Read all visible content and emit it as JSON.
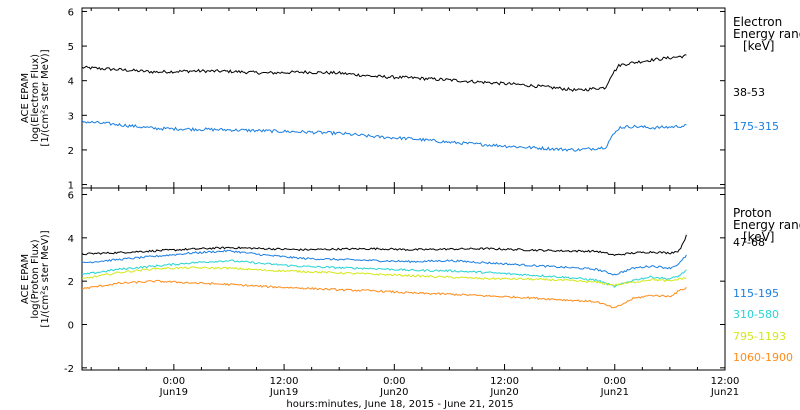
{
  "chart_data": {
    "type": "line",
    "x_axis": {
      "label": "hours:minutes, June 18, 2015 - June 21, 2015",
      "unit": "hours since 2015-06-18 00:00",
      "range": [
        14,
        84
      ],
      "ticks": [
        {
          "value": 24,
          "time": "0:00",
          "date": "Jun19"
        },
        {
          "value": 36,
          "time": "12:00",
          "date": "Jun19"
        },
        {
          "value": 48,
          "time": "0:00",
          "date": "Jun20"
        },
        {
          "value": 60,
          "time": "12:00",
          "date": "Jun20"
        },
        {
          "value": 72,
          "time": "0:00",
          "date": "Jun21"
        },
        {
          "value": 84,
          "time": "12:00",
          "date": "Jun21"
        }
      ]
    },
    "panels": [
      {
        "id": "electron",
        "ylabel_lines": [
          "ACE EPAM",
          "log(Electron Flux)",
          "[1/(cm²s ster MeV)]"
        ],
        "ylim": [
          0.9,
          6.1
        ],
        "yticks": [
          1,
          2,
          3,
          4,
          5,
          6
        ],
        "legend_title": [
          "Electron",
          "Energy range",
          "[keV]"
        ],
        "series": [
          {
            "name": "38-53",
            "color": "#000000",
            "points": [
              [
                14,
                4.38
              ],
              [
                18,
                4.32
              ],
              [
                22,
                4.25
              ],
              [
                26,
                4.28
              ],
              [
                30,
                4.27
              ],
              [
                34,
                4.22
              ],
              [
                38,
                4.25
              ],
              [
                42,
                4.22
              ],
              [
                46,
                4.12
              ],
              [
                50,
                4.08
              ],
              [
                54,
                4.02
              ],
              [
                58,
                3.95
              ],
              [
                62,
                3.88
              ],
              [
                66,
                3.78
              ],
              [
                68,
                3.72
              ],
              [
                70,
                3.78
              ],
              [
                71,
                3.8
              ],
              [
                71.6,
                4.15
              ],
              [
                72.5,
                4.45
              ],
              [
                74,
                4.52
              ],
              [
                76,
                4.6
              ],
              [
                78,
                4.66
              ],
              [
                79.8,
                4.72
              ]
            ]
          },
          {
            "name": "175-315",
            "color": "#1a7ee0",
            "points": [
              [
                14,
                2.82
              ],
              [
                18,
                2.73
              ],
              [
                22,
                2.62
              ],
              [
                26,
                2.6
              ],
              [
                30,
                2.58
              ],
              [
                34,
                2.55
              ],
              [
                38,
                2.52
              ],
              [
                42,
                2.48
              ],
              [
                46,
                2.38
              ],
              [
                50,
                2.32
              ],
              [
                54,
                2.22
              ],
              [
                58,
                2.15
              ],
              [
                62,
                2.08
              ],
              [
                66,
                2.02
              ],
              [
                68,
                2.0
              ],
              [
                70,
                2.05
              ],
              [
                71,
                2.08
              ],
              [
                71.6,
                2.35
              ],
              [
                72.5,
                2.65
              ],
              [
                74,
                2.68
              ],
              [
                76,
                2.64
              ],
              [
                78,
                2.66
              ],
              [
                79.8,
                2.7
              ]
            ]
          }
        ]
      },
      {
        "id": "proton",
        "ylabel_lines": [
          "ACE EPAM",
          "log(Proton Flux)",
          "[1/(cm²s ster MeV)]"
        ],
        "ylim": [
          -2.1,
          6.3
        ],
        "yticks": [
          -2,
          0,
          2,
          4,
          6
        ],
        "legend_title": [
          "Proton",
          "Energy range",
          "[keV]"
        ],
        "series": [
          {
            "name": "47-68",
            "color": "#000000",
            "points": [
              [
                14,
                3.25
              ],
              [
                18,
                3.32
              ],
              [
                22,
                3.4
              ],
              [
                26,
                3.48
              ],
              [
                30,
                3.55
              ],
              [
                34,
                3.5
              ],
              [
                38,
                3.45
              ],
              [
                42,
                3.48
              ],
              [
                46,
                3.5
              ],
              [
                50,
                3.45
              ],
              [
                54,
                3.48
              ],
              [
                58,
                3.5
              ],
              [
                62,
                3.45
              ],
              [
                66,
                3.4
              ],
              [
                70,
                3.38
              ],
              [
                72,
                3.2
              ],
              [
                74,
                3.3
              ],
              [
                76,
                3.35
              ],
              [
                78,
                3.3
              ],
              [
                79,
                3.4
              ],
              [
                79.8,
                4.1
              ]
            ]
          },
          {
            "name": "115-195",
            "color": "#1a7ee0",
            "points": [
              [
                14,
                2.85
              ],
              [
                18,
                3.0
              ],
              [
                22,
                3.15
              ],
              [
                26,
                3.3
              ],
              [
                30,
                3.4
              ],
              [
                34,
                3.2
              ],
              [
                38,
                3.05
              ],
              [
                42,
                3.0
              ],
              [
                46,
                2.95
              ],
              [
                50,
                2.9
              ],
              [
                54,
                2.95
              ],
              [
                58,
                2.85
              ],
              [
                62,
                2.75
              ],
              [
                66,
                2.65
              ],
              [
                70,
                2.55
              ],
              [
                72,
                2.3
              ],
              [
                74,
                2.6
              ],
              [
                76,
                2.7
              ],
              [
                78,
                2.6
              ],
              [
                79,
                2.8
              ],
              [
                79.8,
                3.2
              ]
            ]
          },
          {
            "name": "310-580",
            "color": "#26d3d3",
            "points": [
              [
                14,
                2.3
              ],
              [
                18,
                2.55
              ],
              [
                22,
                2.7
              ],
              [
                26,
                2.85
              ],
              [
                30,
                2.95
              ],
              [
                34,
                2.8
              ],
              [
                38,
                2.68
              ],
              [
                42,
                2.62
              ],
              [
                46,
                2.58
              ],
              [
                50,
                2.5
              ],
              [
                54,
                2.48
              ],
              [
                58,
                2.4
              ],
              [
                62,
                2.3
              ],
              [
                66,
                2.2
              ],
              [
                70,
                2.05
              ],
              [
                72,
                1.75
              ],
              [
                74,
                2.05
              ],
              [
                76,
                2.2
              ],
              [
                78,
                2.1
              ],
              [
                79,
                2.25
              ],
              [
                79.8,
                2.5
              ]
            ]
          },
          {
            "name": "795-1193",
            "color": "#d4e81a",
            "points": [
              [
                14,
                2.1
              ],
              [
                18,
                2.4
              ],
              [
                22,
                2.58
              ],
              [
                26,
                2.62
              ],
              [
                30,
                2.6
              ],
              [
                34,
                2.5
              ],
              [
                38,
                2.45
              ],
              [
                42,
                2.38
              ],
              [
                46,
                2.32
              ],
              [
                50,
                2.25
              ],
              [
                54,
                2.18
              ],
              [
                58,
                2.12
              ],
              [
                62,
                2.1
              ],
              [
                66,
                2.05
              ],
              [
                70,
                1.95
              ],
              [
                72,
                1.82
              ],
              [
                74,
                1.95
              ],
              [
                76,
                2.08
              ],
              [
                78,
                2.0
              ],
              [
                79,
                2.1
              ],
              [
                79.8,
                2.15
              ]
            ]
          },
          {
            "name": "1060-1900",
            "color": "#ff8c1a",
            "points": [
              [
                14,
                1.65
              ],
              [
                18,
                1.9
              ],
              [
                22,
                2.0
              ],
              [
                26,
                1.92
              ],
              [
                30,
                1.85
              ],
              [
                34,
                1.75
              ],
              [
                38,
                1.68
              ],
              [
                42,
                1.6
              ],
              [
                46,
                1.55
              ],
              [
                50,
                1.45
              ],
              [
                54,
                1.4
              ],
              [
                58,
                1.32
              ],
              [
                62,
                1.25
              ],
              [
                66,
                1.15
              ],
              [
                70,
                1.05
              ],
              [
                72,
                0.75
              ],
              [
                74,
                1.2
              ],
              [
                76,
                1.35
              ],
              [
                78,
                1.3
              ],
              [
                79,
                1.55
              ],
              [
                79.8,
                1.7
              ]
            ]
          }
        ]
      }
    ]
  }
}
